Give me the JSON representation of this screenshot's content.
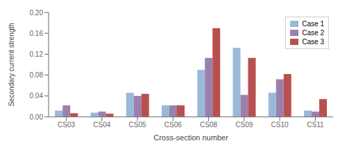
{
  "chart_data": {
    "type": "bar",
    "xlabel": "Cross-section number",
    "ylabel": "Secondary current strength",
    "categories": [
      "CS03",
      "CS04",
      "CS05",
      "CS06",
      "CS08",
      "CS09",
      "CS10",
      "CS11"
    ],
    "series": [
      {
        "name": "Case 1",
        "color": "#9ab9d8",
        "values": [
          0.012,
          0.008,
          0.046,
          0.022,
          0.09,
          0.132,
          0.046,
          0.012
        ]
      },
      {
        "name": "Case 2",
        "color": "#9b80ad",
        "values": [
          0.022,
          0.01,
          0.04,
          0.022,
          0.113,
          0.042,
          0.072,
          0.01
        ]
      },
      {
        "name": "Case 3",
        "color": "#b85050",
        "values": [
          0.007,
          0.006,
          0.044,
          0.022,
          0.17,
          0.113,
          0.082,
          0.034
        ]
      }
    ],
    "ylim": [
      0.0,
      0.2
    ],
    "yticks": [
      {
        "value": 0.0,
        "label": "0.00"
      },
      0.04,
      0.08,
      0.12,
      0.16,
      {
        "value": 0.2,
        "label": "0.20"
      }
    ],
    "grid": false,
    "legend": "upper right"
  }
}
